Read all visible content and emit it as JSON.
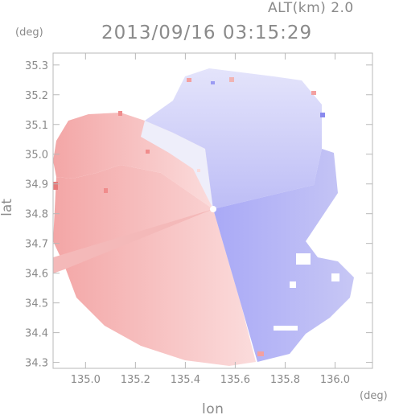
{
  "header": {
    "altitude_label": "ALT(km) 2.0",
    "timestamp": "2013/09/16 03:15:29"
  },
  "colors": {
    "frame": "#b8b8b8",
    "approaching": "#9b9bf3",
    "receding": "#f3a0a0",
    "neutral": "#f4f4fb"
  },
  "chart_data": {
    "type": "heatmap",
    "title": "2013/09/16 03:15:29",
    "subtitle": "ALT(km) 2.0",
    "xlabel": "lon",
    "ylabel": "lat",
    "x_unit": "(deg)",
    "y_unit": "(deg)",
    "xlim": [
      134.87,
      136.15
    ],
    "ylim": [
      34.28,
      35.34
    ],
    "x_ticks": [
      135.0,
      135.2,
      135.4,
      135.6,
      135.8,
      136.0
    ],
    "x_tick_labels": [
      "135.0",
      "135.2",
      "135.4",
      "135.6",
      "135.8",
      "136.0"
    ],
    "y_ticks": [
      34.3,
      34.4,
      34.5,
      34.6,
      34.7,
      34.8,
      34.9,
      35.0,
      35.1,
      35.2,
      35.3
    ],
    "y_tick_labels": [
      "34.3",
      "34.4",
      "34.5",
      "34.6",
      "34.7",
      "34.8",
      "34.9",
      "35.0",
      "35.1",
      "35.2",
      "35.3"
    ],
    "radar_center": {
      "lon": 135.52,
      "lat": 34.82
    },
    "grid": false,
    "legend": "none"
  }
}
